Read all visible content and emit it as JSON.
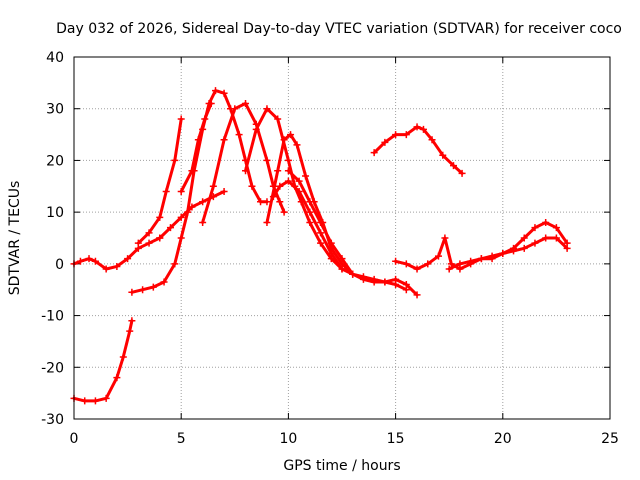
{
  "chart_data": {
    "type": "scatter",
    "title": "Day 032 of 2026, Sidereal Day-to-day VTEC variation (SDTVAR) for receiver coco",
    "xlabel": "GPS time / hours",
    "ylabel": "SDTVAR / TECUs",
    "xlim": [
      0,
      25
    ],
    "ylim": [
      -30,
      40
    ],
    "xticks": [
      0,
      5,
      10,
      15,
      20,
      25
    ],
    "xtick_labels": [
      "0",
      "5",
      "10",
      "15",
      "20",
      "25"
    ],
    "yticks": [
      -30,
      -20,
      -10,
      0,
      10,
      20,
      30,
      40
    ],
    "ytick_labels": [
      "-30",
      "-20",
      "-10",
      "0",
      "10",
      "20",
      "30",
      "40"
    ],
    "grid": true,
    "marker": "+",
    "color": "#ff0000",
    "series": [
      {
        "name": "track-1",
        "x": [
          0,
          0.5,
          1.0,
          1.5,
          2.0,
          2.3,
          2.6,
          2.7
        ],
        "y": [
          -26,
          -26.5,
          -26.5,
          -26,
          -22,
          -18,
          -13,
          -11
        ]
      },
      {
        "name": "track-2",
        "x": [
          0,
          0.3,
          0.7,
          1.0,
          1.5,
          2.0,
          2.5,
          3.0,
          3.5,
          4.0
        ],
        "y": [
          0,
          0.5,
          1,
          0.5,
          -1,
          -0.5,
          1,
          3,
          4,
          5
        ]
      },
      {
        "name": "track-3",
        "x": [
          2.7,
          3.2,
          3.7,
          4.2,
          4.7,
          5.0,
          5.3,
          5.6,
          6.0,
          6.3,
          6.6,
          7.0,
          7.3,
          7.7,
          8.0,
          8.3,
          8.7,
          9.0
        ],
        "y": [
          -5.5,
          -5,
          -4.5,
          -3.5,
          0,
          5,
          10,
          18,
          26,
          31,
          33.5,
          33,
          30,
          25,
          20,
          15,
          12,
          12
        ]
      },
      {
        "name": "track-4",
        "x": [
          6.0,
          6.5,
          7.0,
          7.5,
          8.0,
          8.5,
          9.0,
          9.3,
          9.6,
          9.8
        ],
        "y": [
          8,
          15,
          24,
          30,
          31,
          27,
          20,
          15,
          12,
          10
        ]
      },
      {
        "name": "track-5",
        "x": [
          8.0,
          8.5,
          9.0,
          9.5,
          10.0,
          10.3,
          10.6,
          11.0,
          11.5,
          12.0,
          12.5
        ],
        "y": [
          18,
          26,
          30,
          28,
          20,
          15,
          12,
          8,
          4,
          1,
          -1
        ]
      },
      {
        "name": "track-6",
        "x": [
          9.0,
          9.5,
          9.8,
          10.1,
          10.4,
          10.8,
          11.2,
          11.6,
          12.0,
          12.5,
          13.0
        ],
        "y": [
          8,
          18,
          24,
          25,
          23,
          17,
          12,
          8,
          3,
          0,
          -2
        ]
      },
      {
        "name": "track-7",
        "x": [
          9.3,
          9.6,
          10.0,
          10.5,
          11.0,
          11.5,
          12.0,
          12.5,
          13.0,
          13.5,
          14.0,
          14.5,
          15.0,
          15.5
        ],
        "y": [
          13,
          15,
          16,
          14,
          10,
          6,
          2,
          -1,
          -2,
          -2.5,
          -3,
          -3.5,
          -4,
          -5
        ]
      },
      {
        "name": "track-8",
        "x": [
          10.0,
          10.5,
          11.0,
          11.5,
          12.0,
          12.5,
          13.0,
          13.5,
          14.0,
          14.5,
          15.0,
          15.5,
          16.0
        ],
        "y": [
          18,
          16,
          12,
          8,
          4,
          1,
          -2,
          -3,
          -3.5,
          -3.5,
          -3,
          -4,
          -6
        ]
      },
      {
        "name": "track-9",
        "x": [
          14.0,
          14.5,
          15.0,
          15.5,
          16.0,
          16.3,
          16.7,
          17.2,
          17.7,
          18.1
        ],
        "y": [
          21.5,
          23.5,
          25,
          25,
          26.5,
          26,
          24,
          21,
          19,
          17.5
        ]
      },
      {
        "name": "track-10",
        "x": [
          15.0,
          15.5,
          16.0,
          16.5,
          17.0,
          17.3,
          17.6,
          18.0,
          18.5,
          19.0,
          19.5,
          20.0,
          20.5,
          21.0,
          21.5,
          22.0,
          22.5,
          23.0
        ],
        "y": [
          0.5,
          0,
          -1,
          0,
          1.5,
          5,
          0,
          -1,
          0,
          1,
          1,
          2,
          3,
          5,
          7,
          8,
          7,
          4
        ]
      },
      {
        "name": "track-11",
        "x": [
          17.5,
          18,
          18.5,
          19,
          19.5,
          20,
          20.5,
          21,
          21.5,
          22,
          22.5,
          23.0
        ],
        "y": [
          -1,
          0,
          0.5,
          1,
          1.5,
          2,
          2.5,
          3,
          4,
          5,
          5,
          3
        ]
      },
      {
        "name": "track-12",
        "x": [
          4.0,
          4.5,
          5.0,
          5.5,
          6.0,
          6.5,
          7.0
        ],
        "y": [
          5,
          7,
          9,
          11,
          12,
          13,
          14
        ]
      },
      {
        "name": "track-13",
        "x": [
          3.0,
          3.5,
          4.0,
          4.3,
          4.7,
          5.0
        ],
        "y": [
          4,
          6,
          9,
          14,
          20,
          28
        ]
      },
      {
        "name": "track-14",
        "x": [
          5.0,
          5.5,
          5.8,
          6.1,
          6.4
        ],
        "y": [
          14,
          18,
          24,
          28,
          31
        ]
      }
    ]
  }
}
